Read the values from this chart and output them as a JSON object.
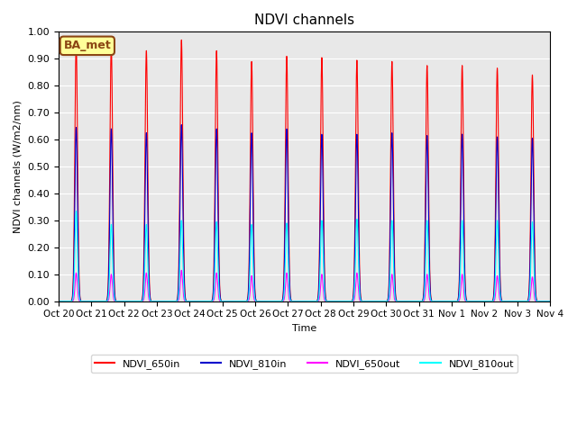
{
  "title": "NDVI channels",
  "ylabel": "NDVI channels (W/m2/nm)",
  "xlabel": "Time",
  "ylim": [
    0.0,
    1.0
  ],
  "yticks": [
    0.0,
    0.1,
    0.2,
    0.3,
    0.4,
    0.5,
    0.6,
    0.7,
    0.8,
    0.9,
    1.0
  ],
  "xtick_labels": [
    "Oct 20",
    "Oct 21",
    "Oct 22",
    "Oct 23",
    "Oct 24",
    "Oct 25",
    "Oct 26",
    "Oct 27",
    "Oct 28",
    "Oct 29",
    "Oct 30",
    "Oct 31",
    "Nov 1",
    "Nov 2",
    "Nov 3",
    "Nov 4"
  ],
  "annotation_text": "BA_met",
  "annotation_color": "#8B4513",
  "annotation_bg": "#FFFF99",
  "colors": {
    "NDVI_650in": "#FF0000",
    "NDVI_810in": "#0000CC",
    "NDVI_650out": "#FF00FF",
    "NDVI_810out": "#00FFFF"
  },
  "peaks_650in": [
    0.96,
    0.95,
    0.93,
    0.97,
    0.93,
    0.89,
    0.91,
    0.905,
    0.895,
    0.89,
    0.875,
    0.875,
    0.865,
    0.84
  ],
  "peaks_810in": [
    0.645,
    0.64,
    0.625,
    0.655,
    0.64,
    0.625,
    0.64,
    0.62,
    0.62,
    0.625,
    0.615,
    0.62,
    0.61,
    0.605
  ],
  "peaks_650out": [
    0.105,
    0.1,
    0.105,
    0.115,
    0.105,
    0.095,
    0.105,
    0.1,
    0.105,
    0.1,
    0.1,
    0.1,
    0.095,
    0.09
  ],
  "peaks_810out": [
    0.335,
    0.285,
    0.285,
    0.3,
    0.295,
    0.285,
    0.29,
    0.3,
    0.305,
    0.3,
    0.3,
    0.3,
    0.3,
    0.295
  ],
  "bg_color": "#E8E8E8",
  "fig_bg": "#FFFFFF"
}
